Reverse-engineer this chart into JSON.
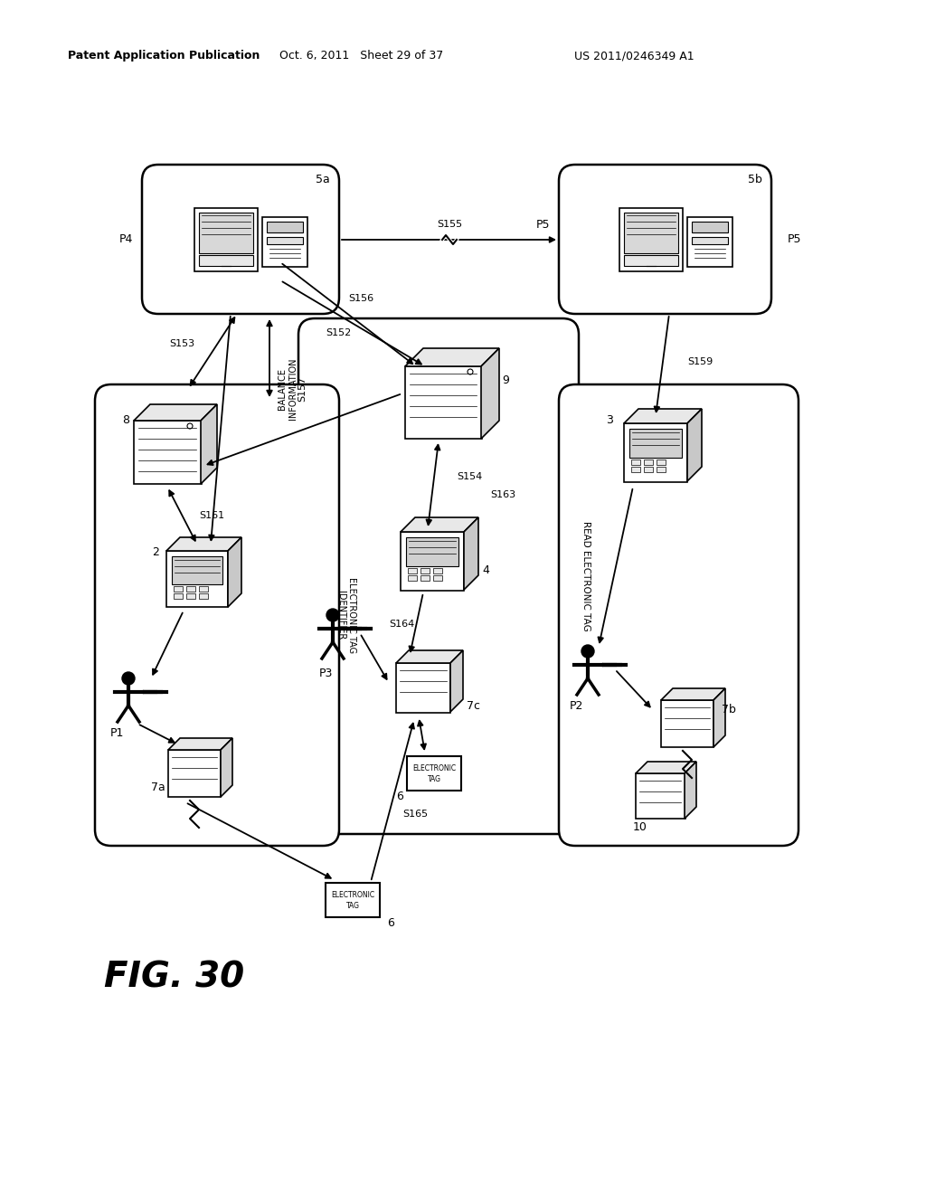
{
  "header_left": "Patent Application Publication",
  "header_center": "Oct. 6, 2011   Sheet 29 of 37",
  "header_right": "US 2011/0246349 A1",
  "bg_color": "#ffffff",
  "fig_width": 10.24,
  "fig_height": 13.2
}
